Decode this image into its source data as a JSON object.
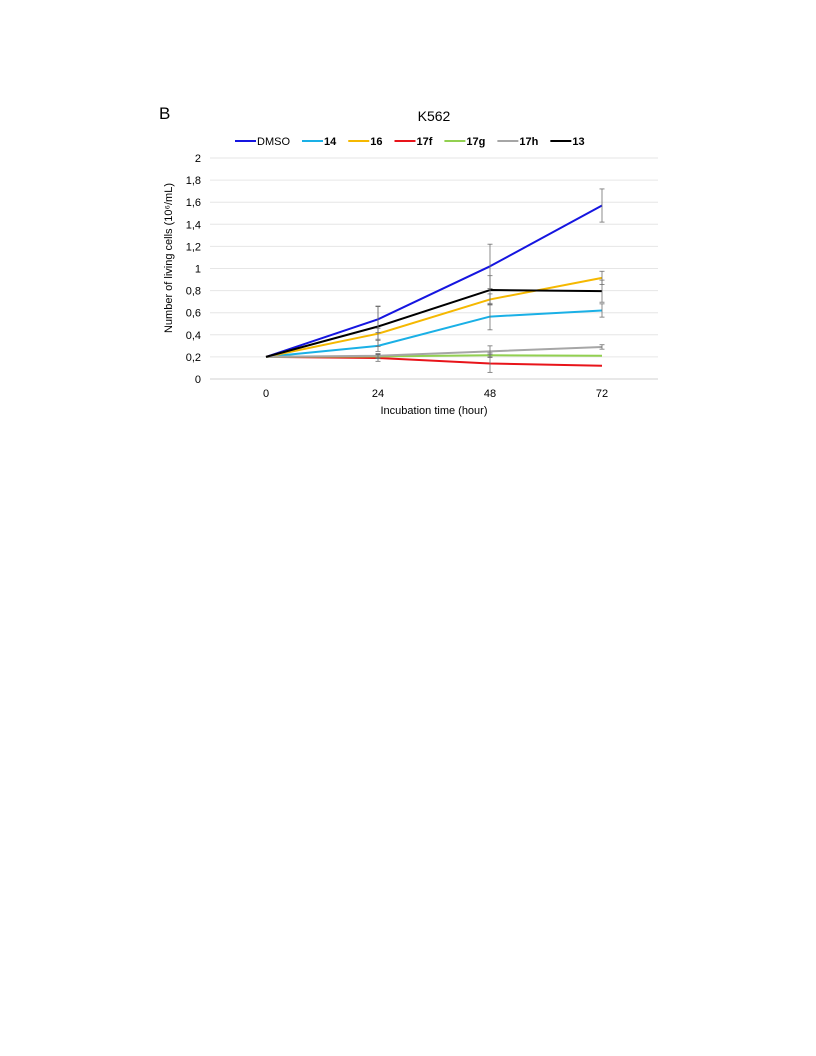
{
  "panel_label": "B",
  "chart_data": {
    "type": "line",
    "title": "K562",
    "xlabel": "Incubation time (hour)",
    "ylabel": "Number of living cells (10⁶/mL)",
    "x": [
      0,
      24,
      48,
      72
    ],
    "x_tick_labels": [
      "0",
      "24",
      "48",
      "72"
    ],
    "ylim": [
      0,
      2
    ],
    "y_ticks": [
      0,
      0.2,
      0.4,
      0.6,
      0.8,
      1,
      1.2,
      1.4,
      1.6,
      1.8,
      2
    ],
    "y_tick_labels": [
      "0",
      "0,2",
      "0,4",
      "0,6",
      "0,8",
      "1",
      "1,2",
      "1,4",
      "1,6",
      "1,8",
      "2"
    ],
    "grid": true,
    "legend_position": "top",
    "series": [
      {
        "name": "DMSO",
        "bold": false,
        "color": "#1515e0",
        "values": [
          0.2,
          0.54,
          1.02,
          1.57
        ],
        "errors": [
          0,
          0.12,
          0.2,
          0.15
        ]
      },
      {
        "name": "14",
        "bold": true,
        "color": "#1ab0e6",
        "values": [
          0.2,
          0.3,
          0.565,
          0.62
        ],
        "errors": [
          0,
          0.05,
          0.12,
          0.06
        ]
      },
      {
        "name": "16",
        "bold": true,
        "color": "#f5b800",
        "values": [
          0.2,
          0.41,
          0.72,
          0.915
        ],
        "errors": [
          0,
          0.05,
          0.05,
          0.06
        ]
      },
      {
        "name": "17f",
        "bold": true,
        "color": "#e8141a",
        "values": [
          0.2,
          0.19,
          0.14,
          0.12
        ],
        "errors": [
          0,
          0.03,
          0.08,
          0
        ]
      },
      {
        "name": "17g",
        "bold": true,
        "color": "#92d050",
        "values": [
          0.2,
          0.205,
          0.215,
          0.21
        ],
        "errors": [
          0,
          0.02,
          0.02,
          0
        ]
      },
      {
        "name": "17h",
        "bold": true,
        "color": "#a6a6a6",
        "values": [
          0.2,
          0.21,
          0.25,
          0.29
        ],
        "errors": [
          0,
          0.02,
          0.05,
          0.02
        ]
      },
      {
        "name": "13",
        "bold": true,
        "color": "#000000",
        "values": [
          0.2,
          0.475,
          0.805,
          0.795
        ],
        "errors": [
          0,
          0.18,
          0.13,
          0.1
        ]
      }
    ]
  }
}
